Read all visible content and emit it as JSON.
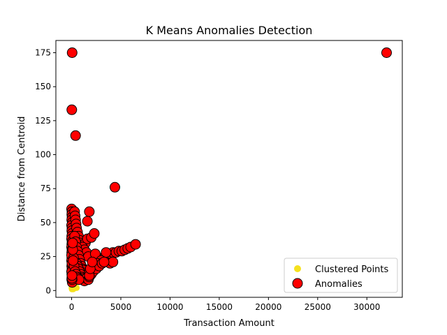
{
  "chart_data": {
    "type": "scatter",
    "title": "K Means Anomalies Detection",
    "xlabel": "Transaction Amount",
    "ylabel": "Distance from Centroid",
    "xlim": [
      -1600,
      33600
    ],
    "ylim": [
      -5,
      184
    ],
    "xticks": [
      0,
      5000,
      10000,
      15000,
      20000,
      25000,
      30000
    ],
    "xtick_labels": [
      "0",
      "5000",
      "10000",
      "15000",
      "20000",
      "25000",
      "30000"
    ],
    "yticks": [
      0,
      25,
      50,
      75,
      100,
      125,
      150,
      175
    ],
    "ytick_labels": [
      "0",
      "25",
      "50",
      "75",
      "100",
      "125",
      "150",
      "175"
    ],
    "grid": false,
    "legend_position": "lower-right",
    "series": [
      {
        "name": "Clustered Points",
        "color": "#f5e11e",
        "edgecolor": "#f5e11e",
        "marker_size": "small",
        "points": [
          [
            10,
            2
          ],
          [
            50,
            3
          ],
          [
            120,
            2
          ],
          [
            200,
            4
          ],
          [
            300,
            3
          ],
          [
            400,
            5
          ],
          [
            150,
            1
          ],
          [
            80,
            6
          ],
          [
            250,
            1.5
          ],
          [
            350,
            2.5
          ],
          [
            500,
            2
          ],
          [
            60,
            4
          ],
          [
            30,
            1
          ],
          [
            180,
            3
          ]
        ]
      },
      {
        "name": "Anomalies",
        "color": "#ff0000",
        "edgecolor": "#000000",
        "marker_size": "large",
        "points": [
          [
            32000,
            175
          ],
          [
            50,
            175
          ],
          [
            20,
            133
          ],
          [
            400,
            114
          ],
          [
            4400,
            76
          ],
          [
            1800,
            58
          ],
          [
            1600,
            51
          ],
          [
            0,
            60
          ],
          [
            30,
            58
          ],
          [
            20,
            56
          ],
          [
            40,
            54
          ],
          [
            10,
            52
          ],
          [
            60,
            50
          ],
          [
            0,
            48
          ],
          [
            30,
            46
          ],
          [
            20,
            44
          ],
          [
            50,
            42
          ],
          [
            10,
            40
          ],
          [
            0,
            38
          ],
          [
            40,
            36
          ],
          [
            20,
            34
          ],
          [
            0,
            32
          ],
          [
            30,
            30
          ],
          [
            10,
            28
          ],
          [
            50,
            26
          ],
          [
            20,
            24
          ],
          [
            0,
            22
          ],
          [
            40,
            20
          ],
          [
            10,
            18
          ],
          [
            30,
            16
          ],
          [
            0,
            14
          ],
          [
            20,
            12
          ],
          [
            40,
            10
          ],
          [
            10,
            8
          ],
          [
            60,
            6
          ],
          [
            0,
            26
          ],
          [
            30,
            20
          ],
          [
            10,
            14
          ],
          [
            20,
            9
          ],
          [
            300,
            58
          ],
          [
            350,
            55
          ],
          [
            400,
            52
          ],
          [
            450,
            49
          ],
          [
            500,
            46
          ],
          [
            600,
            43
          ],
          [
            700,
            40
          ],
          [
            800,
            37
          ],
          [
            900,
            35
          ],
          [
            1000,
            33
          ],
          [
            1200,
            31
          ],
          [
            1400,
            35
          ],
          [
            1600,
            38
          ],
          [
            2000,
            39
          ],
          [
            2300,
            42
          ],
          [
            1100,
            32
          ],
          [
            1300,
            30
          ],
          [
            1500,
            28
          ],
          [
            1700,
            25
          ],
          [
            300,
            40
          ],
          [
            400,
            36
          ],
          [
            500,
            32
          ],
          [
            600,
            29
          ],
          [
            700,
            26
          ],
          [
            800,
            23
          ],
          [
            900,
            20
          ],
          [
            1000,
            18
          ],
          [
            1100,
            16
          ],
          [
            1200,
            15
          ],
          [
            1300,
            13
          ],
          [
            1400,
            12
          ],
          [
            1500,
            11
          ],
          [
            500,
            20
          ],
          [
            600,
            18
          ],
          [
            700,
            16
          ],
          [
            800,
            14
          ],
          [
            900,
            12
          ],
          [
            1000,
            10
          ],
          [
            1100,
            9
          ],
          [
            1200,
            8
          ],
          [
            1300,
            7
          ],
          [
            1500,
            9
          ],
          [
            1700,
            8
          ],
          [
            1800,
            10
          ],
          [
            200,
            24
          ],
          [
            250,
            18
          ],
          [
            350,
            14
          ],
          [
            450,
            12
          ],
          [
            550,
            10
          ],
          [
            650,
            9
          ],
          [
            750,
            8
          ],
          [
            1800,
            13
          ],
          [
            2000,
            15
          ],
          [
            2200,
            17
          ],
          [
            2400,
            19
          ],
          [
            2600,
            21
          ],
          [
            2800,
            22
          ],
          [
            3000,
            23
          ],
          [
            3200,
            24
          ],
          [
            3400,
            25
          ],
          [
            3600,
            26
          ],
          [
            3800,
            26
          ],
          [
            4000,
            27
          ],
          [
            4200,
            28
          ],
          [
            4500,
            28
          ],
          [
            4800,
            29
          ],
          [
            5100,
            29
          ],
          [
            5400,
            30
          ],
          [
            5700,
            31
          ],
          [
            6000,
            32
          ],
          [
            6500,
            34
          ],
          [
            3500,
            28
          ],
          [
            2400,
            27
          ],
          [
            3000,
            22
          ],
          [
            2600,
            20
          ],
          [
            2200,
            18
          ],
          [
            3900,
            20
          ],
          [
            4200,
            21
          ],
          [
            2000,
            12
          ],
          [
            2200,
            14
          ],
          [
            2500,
            16
          ],
          [
            2800,
            18
          ],
          [
            3100,
            20
          ],
          [
            3300,
            21
          ],
          [
            1800,
            11
          ],
          [
            1900,
            16
          ],
          [
            2100,
            21
          ],
          [
            150,
            22
          ],
          [
            120,
            30
          ],
          [
            100,
            35
          ],
          [
            50,
            8
          ],
          [
            30,
            9
          ],
          [
            40,
            11
          ]
        ]
      }
    ]
  }
}
